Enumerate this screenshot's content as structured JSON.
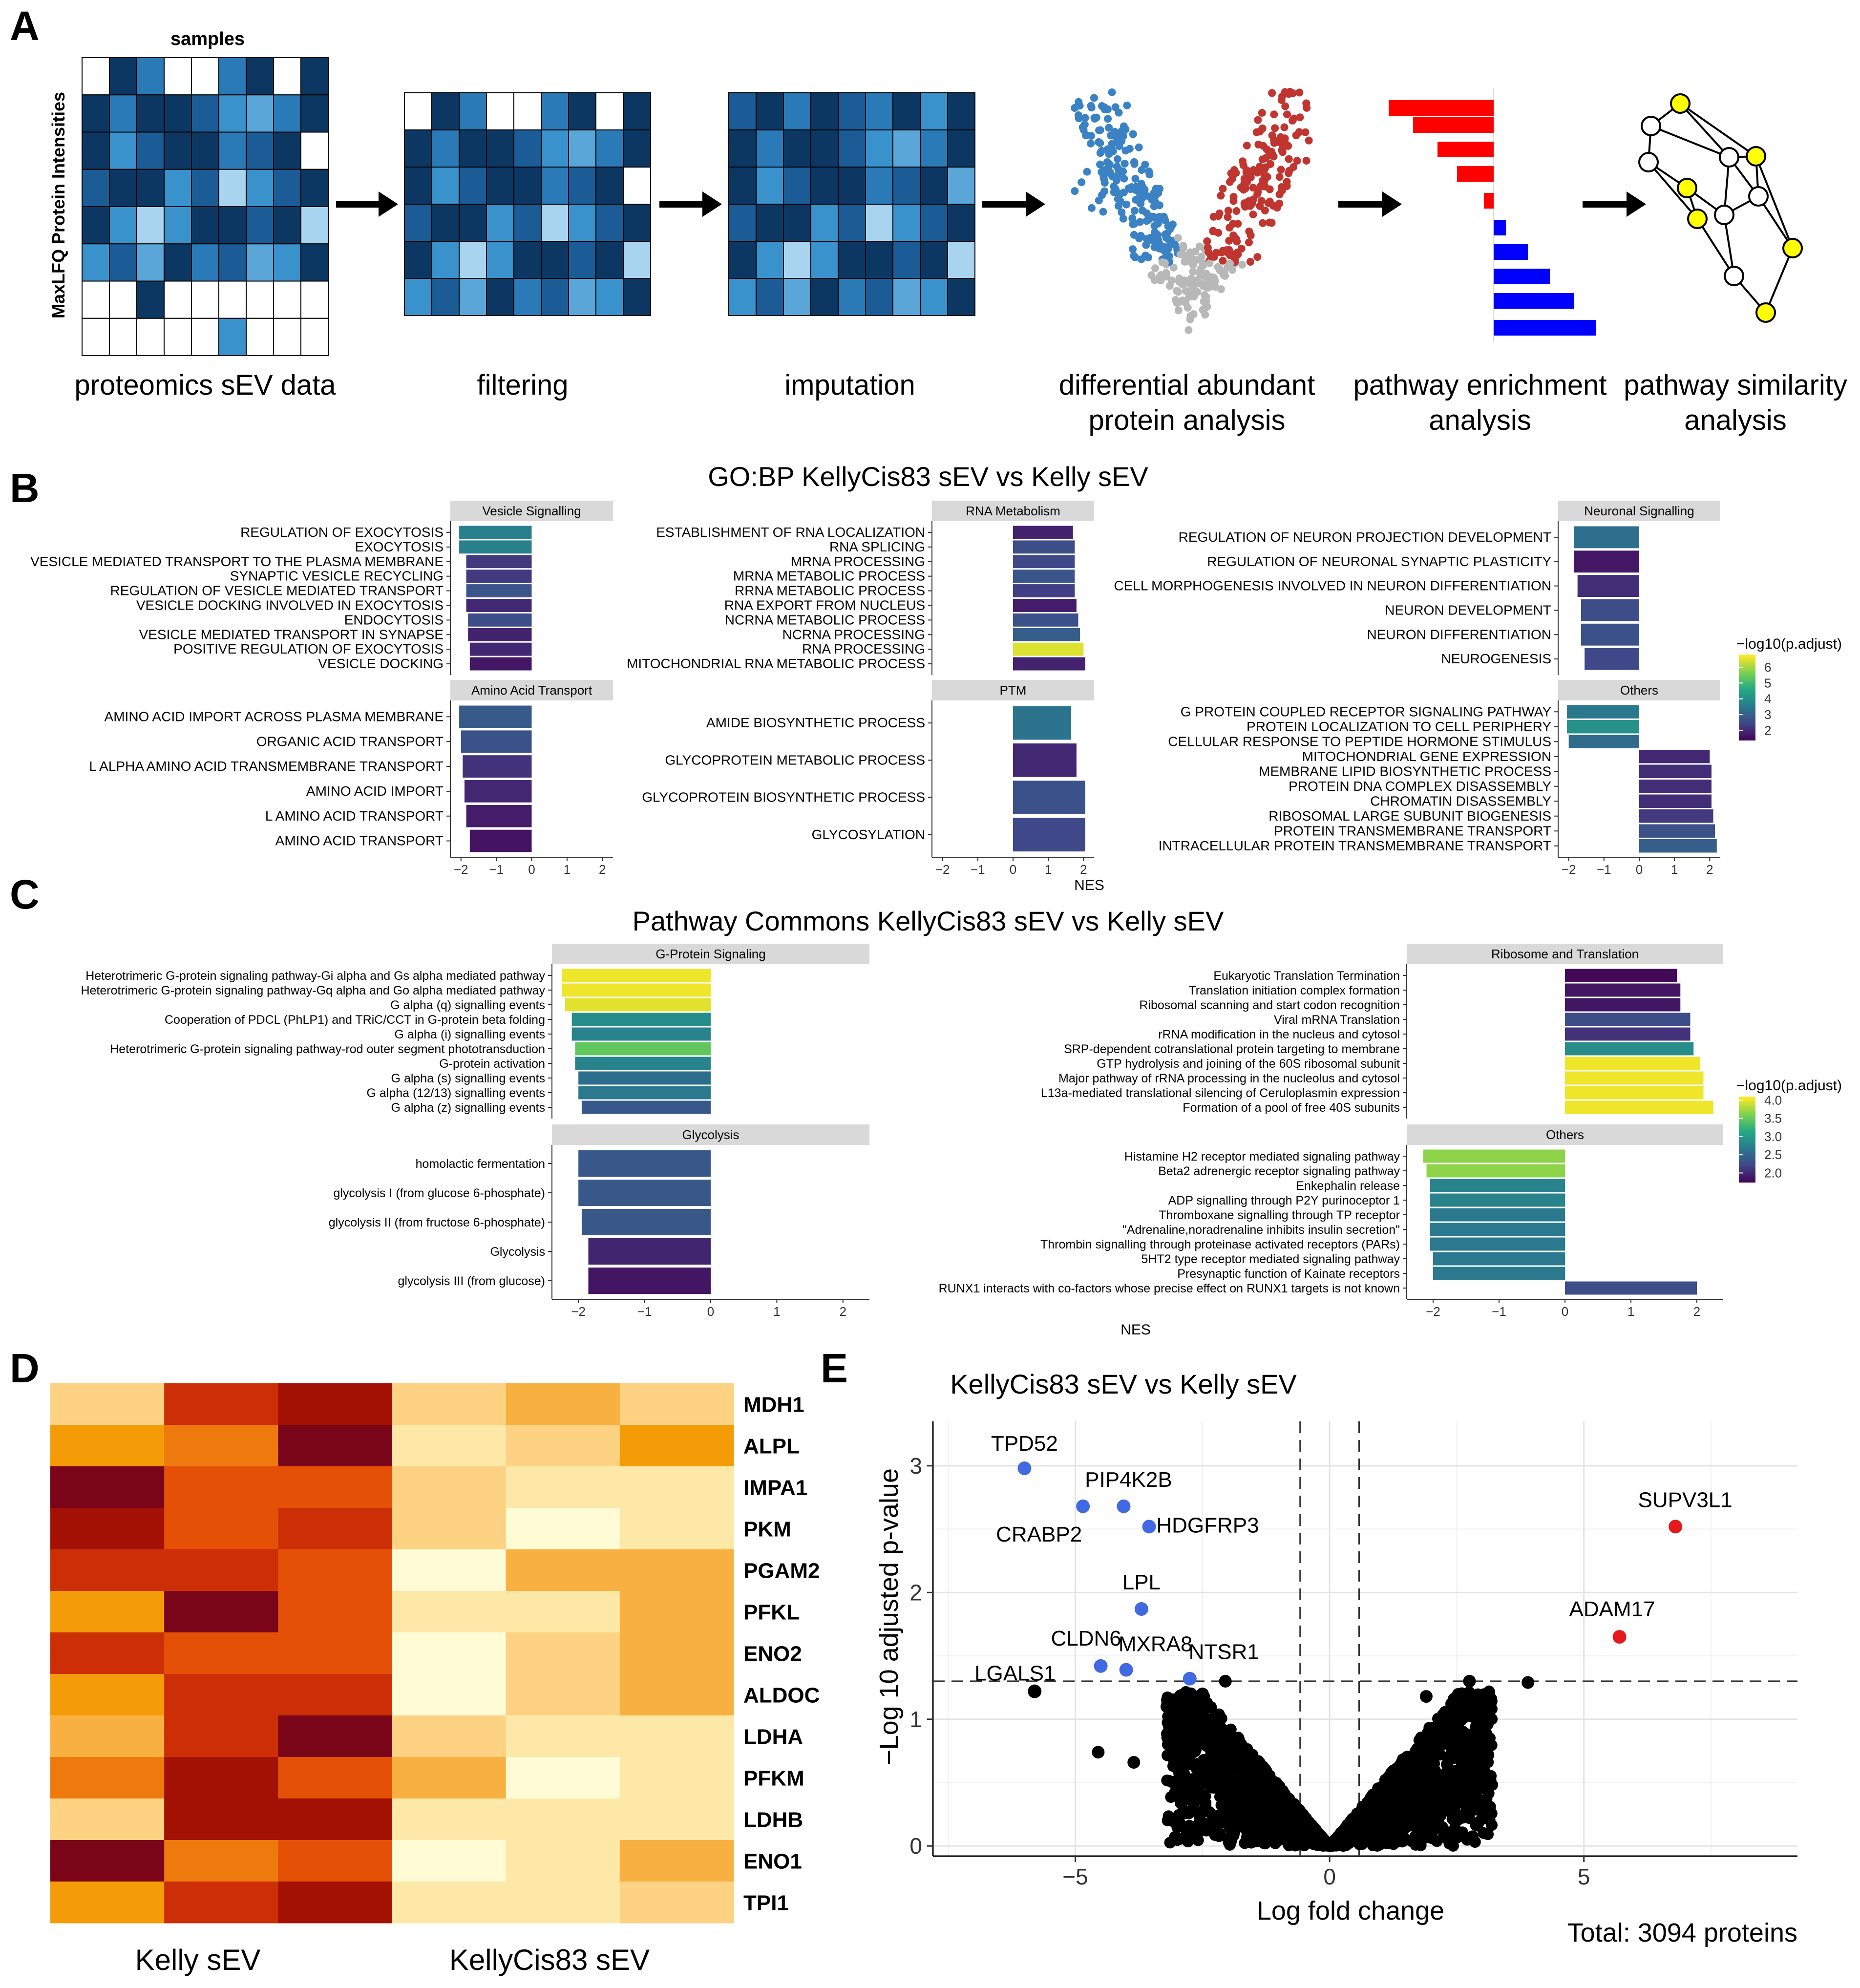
{
  "panel_labels": [
    "A",
    "B",
    "C",
    "D",
    "E"
  ],
  "workflow": {
    "samples_label": "samples",
    "ylabel": "MaxLFQ Protein Intensities",
    "steps": [
      "proteomics sEV data",
      "filtering",
      "imputation",
      "differential abundant\nprotein analysis",
      "pathway enrichment\nanalysis",
      "pathway similarity\nanalysis"
    ],
    "blue_palette": [
      "#ffffff",
      "#0d3763",
      "#1b5b96",
      "#2a7ab8",
      "#3a92cc",
      "#5ba6d8",
      "#a8d4f0"
    ]
  },
  "colorbar_B": {
    "title": "−log10(p.adjust)",
    "ticks": [
      "6",
      "5",
      "4",
      "3",
      "2"
    ]
  },
  "colorbar_C": {
    "title": "−log10(p.adjust)",
    "ticks": [
      "4.0",
      "3.5",
      "3.0",
      "2.5",
      "2.0"
    ]
  },
  "panel_B": {
    "title": "GO:BP KellyCis83 sEV vs Kelly sEV",
    "xlabel": "NES",
    "x_ticks": [
      "−2",
      "−1",
      "0",
      "1",
      "2"
    ]
  },
  "panel_C": {
    "title": "Pathway Commons KellyCis83 sEV vs Kelly sEV",
    "xlabel": "NES",
    "x_ticks": [
      "−2",
      "−1",
      "0",
      "1",
      "2"
    ]
  },
  "panel_D": {
    "group_labels": [
      "Kelly sEV",
      "KellyCis83 sEV"
    ]
  },
  "panel_E": {
    "title": "KellyCis83 sEV vs Kelly sEV",
    "xlabel": "Log fold change",
    "ylabel": "−Log 10 adjusted p-value",
    "x_ticks": [
      "−5",
      "0",
      "5"
    ],
    "y_ticks": [
      "0",
      "1",
      "2",
      "3"
    ],
    "total": "Total: 3094 proteins",
    "colors": {
      "up": "#e41a1c",
      "down": "#4169e1",
      "ns": "#000000"
    }
  },
  "chart_data": [
    {
      "type": "bar",
      "orientation": "horizontal",
      "panel": "B",
      "facet": "Vesicle Signalling",
      "xlim": [
        -2.3,
        2.3
      ],
      "categories": [
        "REGULATION OF EXOCYTOSIS",
        "EXOCYTOSIS",
        "VESICLE MEDIATED TRANSPORT TO THE PLASMA MEMBRANE",
        "SYNAPTIC VESICLE RECYCLING",
        "REGULATION OF VESICLE MEDIATED TRANSPORT",
        "VESICLE DOCKING INVOLVED IN EXOCYTOSIS",
        "ENDOCYTOSIS",
        "VESICLE MEDIATED TRANSPORT IN SYNAPSE",
        "POSITIVE REGULATION OF EXOCYTOSIS",
        "VESICLE DOCKING"
      ],
      "values": [
        -2.05,
        -2.05,
        -1.85,
        -1.85,
        -1.85,
        -1.85,
        -1.8,
        -1.8,
        -1.75,
        -1.75
      ],
      "neglog10_padj": [
        3.4,
        3.4,
        1.8,
        1.8,
        2.4,
        1.5,
        2.2,
        1.4,
        1.5,
        1.2
      ]
    },
    {
      "type": "bar",
      "orientation": "horizontal",
      "panel": "B",
      "facet": "RNA Metabolism",
      "xlim": [
        -2.3,
        2.3
      ],
      "categories": [
        "ESTABLISHMENT OF RNA LOCALIZATION",
        "RNA SPLICING",
        "MRNA PROCESSING",
        "MRNA METABOLIC PROCESS",
        "RRNA METABOLIC PROCESS",
        "RNA EXPORT FROM NUCLEUS",
        "NCRNA METABOLIC PROCESS",
        "NCRNA PROCESSING",
        "RNA PROCESSING",
        "MITOCHONDRIAL RNA METABOLIC PROCESS"
      ],
      "values": [
        1.7,
        1.75,
        1.75,
        1.75,
        1.75,
        1.8,
        1.85,
        1.9,
        2.0,
        2.05
      ],
      "neglog10_padj": [
        1.4,
        2.2,
        2.1,
        2.4,
        1.9,
        1.3,
        2.3,
        2.6,
        6.5,
        1.4
      ]
    },
    {
      "type": "bar",
      "orientation": "horizontal",
      "panel": "B",
      "facet": "Neuronal Signalling",
      "xlim": [
        -2.3,
        2.3
      ],
      "categories": [
        "REGULATION OF NEURON PROJECTION DEVELOPMENT",
        "REGULATION OF NEURONAL SYNAPTIC PLASTICITY",
        "CELL MORPHOGENESIS INVOLVED IN NEURON DIFFERENTIATION",
        "NEURON DEVELOPMENT",
        "NEURON DIFFERENTIATION",
        "NEUROGENESIS"
      ],
      "values": [
        -1.85,
        -1.85,
        -1.75,
        -1.65,
        -1.65,
        -1.55
      ],
      "neglog10_padj": [
        3.0,
        1.2,
        1.6,
        2.2,
        2.3,
        2.1
      ]
    },
    {
      "type": "bar",
      "orientation": "horizontal",
      "panel": "B",
      "facet": "Amino Acid Transport",
      "xlim": [
        -2.3,
        2.3
      ],
      "categories": [
        "AMINO ACID IMPORT ACROSS PLASMA MEMBRANE",
        "ORGANIC ACID TRANSPORT",
        "L ALPHA AMINO ACID TRANSMEMBRANE TRANSPORT",
        "AMINO ACID IMPORT",
        "L AMINO ACID TRANSPORT",
        "AMINO ACID TRANSPORT"
      ],
      "values": [
        -2.05,
        -2.0,
        -1.95,
        -1.9,
        -1.85,
        -1.75
      ],
      "neglog10_padj": [
        2.5,
        2.3,
        1.7,
        1.5,
        1.3,
        1.1
      ]
    },
    {
      "type": "bar",
      "orientation": "horizontal",
      "panel": "B",
      "facet": "PTM",
      "xlim": [
        -2.3,
        2.3
      ],
      "categories": [
        "AMIDE BIOSYNTHETIC PROCESS",
        "GLYCOPROTEIN METABOLIC PROCESS",
        "GLYCOPROTEIN BIOSYNTHETIC PROCESS",
        "GLYCOSYLATION"
      ],
      "values": [
        1.65,
        1.8,
        2.05,
        2.05
      ],
      "neglog10_padj": [
        3.1,
        1.5,
        2.3,
        2.1
      ]
    },
    {
      "type": "bar",
      "orientation": "horizontal",
      "panel": "B",
      "facet": "Others",
      "xlim": [
        -2.3,
        2.3
      ],
      "categories": [
        "G PROTEIN COUPLED RECEPTOR SIGNALING PATHWAY",
        "PROTEIN LOCALIZATION TO CELL PERIPHERY",
        "CELLULAR RESPONSE TO PEPTIDE HORMONE STIMULUS",
        "MITOCHONDRIAL GENE EXPRESSION",
        "MEMBRANE LIPID BIOSYNTHETIC PROCESS",
        "PROTEIN DNA COMPLEX DISASSEMBLY",
        "CHROMATIN DISASSEMBLY",
        "RIBOSOMAL LARGE SUBUNIT BIOGENESIS",
        "PROTEIN TRANSMEMBRANE TRANSPORT",
        "INTRACELLULAR PROTEIN TRANSMEMBRANE TRANSPORT"
      ],
      "values": [
        -2.05,
        -2.05,
        -2.0,
        2.0,
        2.05,
        2.05,
        2.05,
        2.1,
        2.15,
        2.2
      ],
      "neglog10_padj": [
        3.2,
        3.8,
        2.9,
        1.5,
        1.6,
        1.6,
        1.6,
        1.8,
        2.3,
        2.6
      ]
    },
    {
      "type": "bar",
      "orientation": "horizontal",
      "panel": "C",
      "facet": "G-Protein Signaling",
      "xlim": [
        -2.4,
        2.4
      ],
      "categories": [
        "Heterotrimeric G-protein signaling pathway-Gi alpha and Gs alpha mediated pathway",
        "Heterotrimeric G-protein signaling pathway-Gq alpha and Go alpha mediated pathway",
        "G alpha (q) signalling events",
        "Cooperation of PDCL (PhLP1) and TRiC/CCT in G-protein beta folding",
        "G alpha (i) signalling events",
        "Heterotrimeric G-protein signaling pathway-rod outer segment phototransduction",
        "G-protein activation",
        "G alpha (s) signalling events",
        "G alpha (12/13) signalling events",
        "G alpha (z) signalling events"
      ],
      "values": [
        -2.25,
        -2.25,
        -2.2,
        -2.1,
        -2.1,
        -2.05,
        -2.05,
        -2.0,
        -2.0,
        -1.95
      ],
      "neglog10_padj": [
        4.05,
        4.05,
        4.0,
        2.9,
        2.8,
        3.5,
        2.8,
        2.6,
        2.7,
        2.4
      ]
    },
    {
      "type": "bar",
      "orientation": "horizontal",
      "panel": "C",
      "facet": "Ribosome and Translation",
      "xlim": [
        -2.4,
        2.4
      ],
      "categories": [
        "Eukaryotic Translation Termination",
        "Translation initiation complex formation",
        "Ribosomal scanning and start codon recognition",
        "Viral mRNA Translation",
        "rRNA modification in the nucleus and cytosol",
        "SRP-dependent cotranslational protein targeting to membrane",
        "GTP hydrolysis and joining of the 60S ribosomal subunit",
        "Major pathway of rRNA processing in the nucleolus and cytosol",
        "L13a-mediated translational silencing of Ceruloplasmin expression",
        "Formation of a pool of free 40S subunits"
      ],
      "values": [
        1.7,
        1.75,
        1.75,
        1.9,
        1.9,
        1.95,
        2.05,
        2.1,
        2.1,
        2.25
      ],
      "neglog10_padj": [
        1.8,
        1.9,
        1.9,
        2.3,
        2.1,
        2.9,
        4.05,
        4.05,
        4.05,
        4.05
      ]
    },
    {
      "type": "bar",
      "orientation": "horizontal",
      "panel": "C",
      "facet": "Glycolysis",
      "xlim": [
        -2.4,
        2.4
      ],
      "categories": [
        "homolactic fermentation",
        "glycolysis I (from glucose 6-phosphate)",
        "glycolysis II (from fructose 6-phosphate)",
        "Glycolysis",
        "glycolysis III (from glucose)"
      ],
      "values": [
        -2.0,
        -2.0,
        -1.95,
        -1.85,
        -1.85
      ],
      "neglog10_padj": [
        2.4,
        2.4,
        2.4,
        2.0,
        1.9
      ]
    },
    {
      "type": "bar",
      "orientation": "horizontal",
      "panel": "C",
      "facet": "Others",
      "xlim": [
        -2.4,
        2.4
      ],
      "categories": [
        "Histamine H2 receptor mediated signaling pathway",
        "Beta2 adrenergic receptor signaling pathway",
        "Enkephalin release",
        "ADP signalling through P2Y purinoceptor 1",
        "Thromboxane signalling through TP receptor",
        "\"Adrenaline,noradrenaline inhibits insulin secretion\"",
        "Thrombin signalling through proteinase activated receptors (PARs)",
        "5HT2 type receptor mediated signaling pathway",
        "Presynaptic function of Kainate receptors",
        "RUNX1 interacts with co-factors whose precise effect on RUNX1 targets is not known"
      ],
      "values": [
        -2.15,
        -2.1,
        -2.05,
        -2.05,
        -2.05,
        -2.05,
        -2.05,
        -2.0,
        -2.0,
        2.0
      ],
      "neglog10_padj": [
        3.7,
        3.7,
        2.8,
        2.8,
        2.7,
        2.7,
        2.7,
        2.7,
        2.7,
        2.3
      ]
    },
    {
      "type": "heatmap",
      "panel": "D",
      "rows": [
        "MDH1",
        "ALPL",
        "IMPA1",
        "PKM",
        "PGAM2",
        "PFKL",
        "ENO2",
        "ALDOC",
        "LDHA",
        "PFKM",
        "LDHB",
        "ENO1",
        "TPI1"
      ],
      "column_groups": [
        "Kelly sEV",
        "Kelly sEV",
        "Kelly sEV",
        "KellyCis83 sEV",
        "KellyCis83 sEV",
        "KellyCis83 sEV"
      ],
      "color_scale": [
        "#fffbd5",
        "#fde8a8",
        "#fdd283",
        "#f8b140",
        "#f39c07",
        "#ee7a0e",
        "#e55007",
        "#cc2f06",
        "#a21104",
        "#7a0418"
      ],
      "values": [
        [
          2,
          7,
          8,
          2,
          3,
          2
        ],
        [
          4,
          5,
          9,
          1,
          2,
          4
        ],
        [
          9,
          6,
          6,
          2,
          1,
          1
        ],
        [
          8,
          6,
          7,
          2,
          0,
          1
        ],
        [
          7,
          7,
          6,
          0,
          3,
          3
        ],
        [
          4,
          9,
          6,
          1,
          1,
          3
        ],
        [
          7,
          6,
          6,
          0,
          2,
          3
        ],
        [
          4,
          7,
          7,
          0,
          2,
          3
        ],
        [
          3,
          7,
          9,
          2,
          1,
          1
        ],
        [
          5,
          8,
          6,
          3,
          0,
          1
        ],
        [
          2,
          8,
          8,
          1,
          1,
          1
        ],
        [
          9,
          5,
          6,
          0,
          1,
          3
        ],
        [
          4,
          7,
          8,
          1,
          1,
          2
        ]
      ]
    },
    {
      "type": "scatter",
      "panel": "E",
      "xlim": [
        -7.8,
        9.2
      ],
      "ylim": [
        -0.08,
        3.35
      ],
      "thresholds": {
        "x": [
          -0.58,
          0.58
        ],
        "y": 1.3
      },
      "labeled_points": [
        {
          "label": "TPD52",
          "x": -6.0,
          "y": 2.98,
          "group": "down"
        },
        {
          "label": "PIP4K2B",
          "x": -4.05,
          "y": 2.68,
          "group": "down"
        },
        {
          "label": "CRABP2",
          "x": -4.85,
          "y": 2.68,
          "group": "down"
        },
        {
          "label": "HDGFRP3",
          "x": -3.55,
          "y": 2.52,
          "group": "down"
        },
        {
          "label": "LPL",
          "x": -3.7,
          "y": 1.87,
          "group": "down"
        },
        {
          "label": "CLDN6",
          "x": -4.5,
          "y": 1.42,
          "group": "down"
        },
        {
          "label": "MXRA8",
          "x": -4.0,
          "y": 1.39,
          "group": "down"
        },
        {
          "label": "NTSR1",
          "x": -2.75,
          "y": 1.32,
          "group": "down"
        },
        {
          "label": "LGALS1",
          "x": -5.8,
          "y": 1.22,
          "group": "ns"
        },
        {
          "label": "SUPV3L1",
          "x": 6.8,
          "y": 2.52,
          "group": "up"
        },
        {
          "label": "ADAM17",
          "x": 5.7,
          "y": 1.65,
          "group": "up"
        }
      ],
      "extra_points": [
        {
          "x": -4.55,
          "y": 0.74
        },
        {
          "x": -3.85,
          "y": 0.66
        },
        {
          "x": -2.05,
          "y": 1.3
        },
        {
          "x": 2.75,
          "y": 1.3
        },
        {
          "x": 3.9,
          "y": 1.29
        },
        {
          "x": -3.2,
          "y": 1.1
        },
        {
          "x": 1.9,
          "y": 1.18
        },
        {
          "x": -2.5,
          "y": 1.2
        },
        {
          "x": 2.4,
          "y": 1.12
        }
      ]
    }
  ]
}
